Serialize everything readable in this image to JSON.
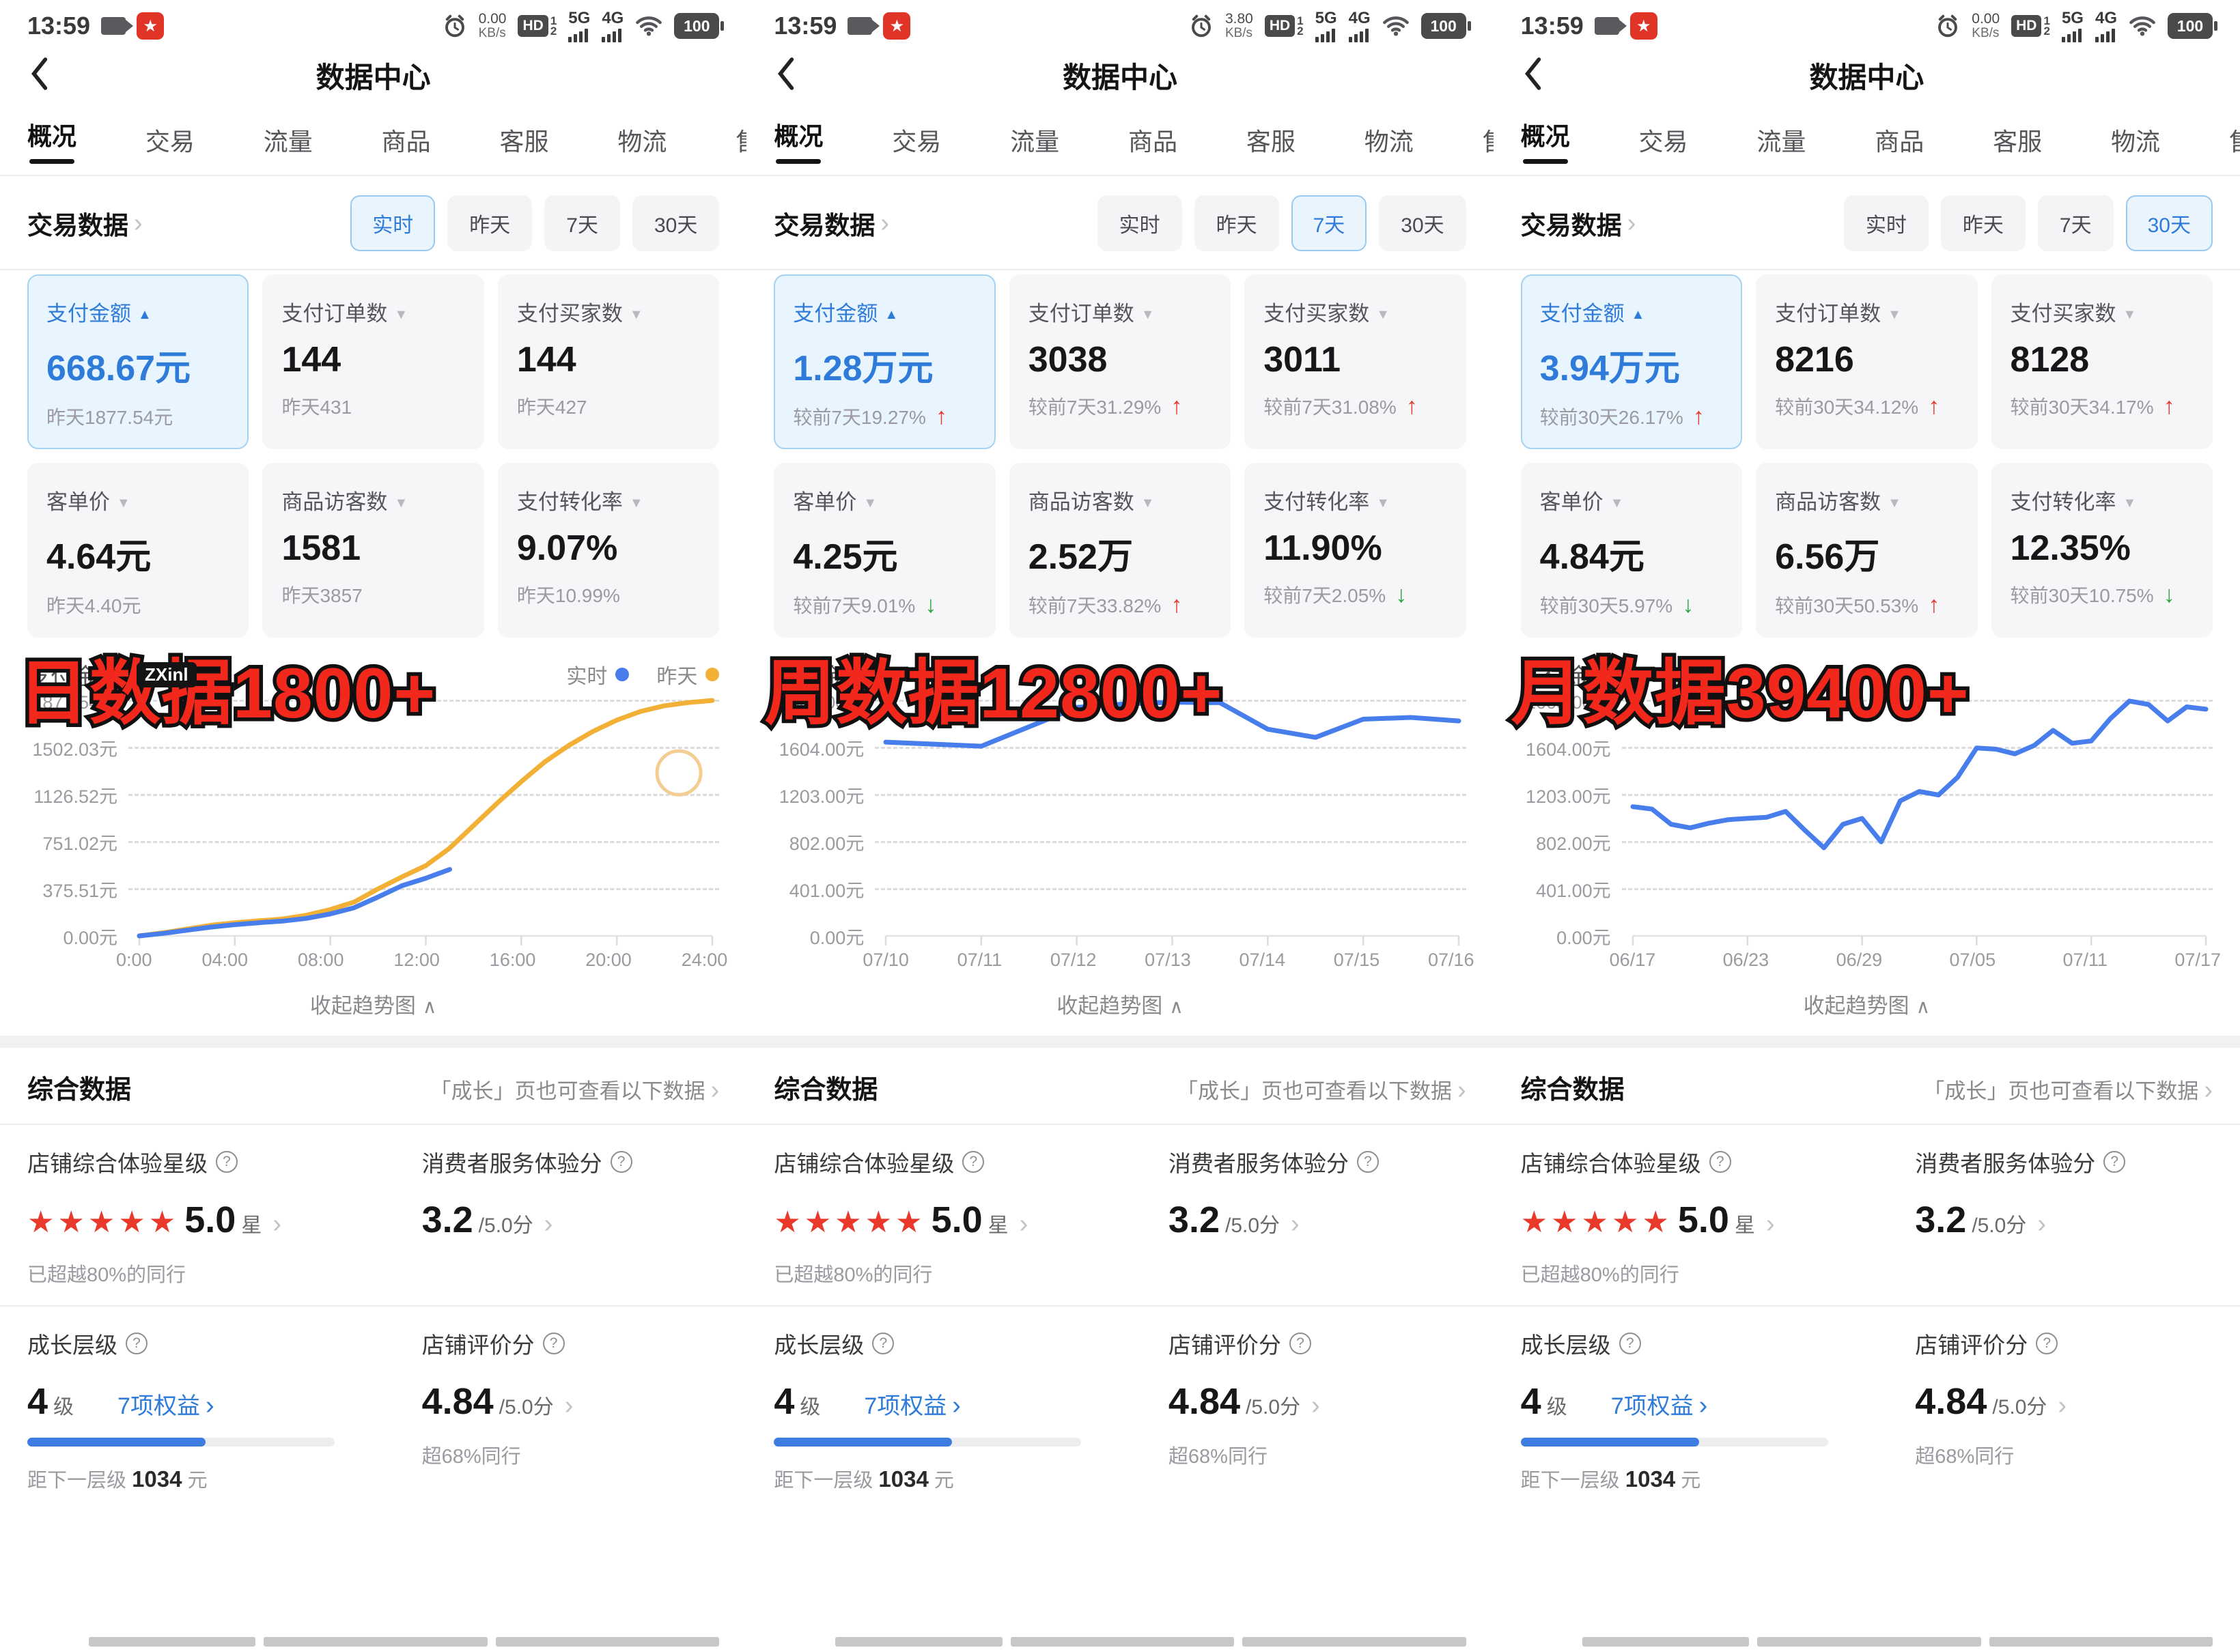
{
  "header_title": "数据中心",
  "tabs": [
    {
      "label": "概况",
      "cls": "active"
    },
    {
      "label": "交易",
      "cls": ""
    },
    {
      "label": "流量",
      "cls": ""
    },
    {
      "label": "商品",
      "cls": ""
    },
    {
      "label": "客服",
      "cls": ""
    },
    {
      "label": "物流",
      "cls": ""
    },
    {
      "label": "售",
      "cls": ""
    }
  ],
  "section_title": "交易数据",
  "collapse_label": "收起趋势图",
  "summary": {
    "heading": "综合数据",
    "link": "「成长」页也可查看以下数据",
    "star_label": "店铺综合体验星级",
    "stars": "★★★★★",
    "star_value": "5.0",
    "star_unit": "星",
    "service_label": "消费者服务体验分",
    "service_value": "3.2",
    "service_suffix": "/5.0分",
    "surpass": "已超越80%的同行",
    "growth_label": "成长层级",
    "growth_value": "4",
    "growth_unit": "级",
    "rights": "7项权益",
    "progress_style": "width:58%",
    "next_level_prefix": "距下一层级",
    "next_level_value": "1034",
    "next_level_unit": "元",
    "rating_label": "店铺评价分",
    "rating_value": "4.84",
    "rating_suffix": "/5.0分",
    "rating_surpass": "超68%同行"
  },
  "panels": [
    {
      "status": {
        "time": "13:59",
        "speed": "0.00",
        "speed_unit": "KB/s",
        "hd": "HD",
        "hd_1": "1",
        "hd_2": "2",
        "net5": "5G",
        "net4": "4G",
        "battery": "100"
      },
      "filters": [
        {
          "label": "实时",
          "cls": "selected"
        },
        {
          "label": "昨天",
          "cls": ""
        },
        {
          "label": "7天",
          "cls": ""
        },
        {
          "label": "30天",
          "cls": ""
        }
      ],
      "cards": [
        {
          "title": "支付金额",
          "value": "668.67元",
          "sub": "昨天1877.54元",
          "cls": "selected",
          "ind": "up",
          "trend": ""
        },
        {
          "title": "支付订单数",
          "value": "144",
          "sub": "昨天431",
          "cls": "",
          "ind": "down",
          "trend": ""
        },
        {
          "title": "支付买家数",
          "value": "144",
          "sub": "昨天427",
          "cls": "",
          "ind": "down",
          "trend": ""
        },
        {
          "title": "客单价",
          "value": "4.64元",
          "sub": "昨天4.40元",
          "cls": "",
          "ind": "down",
          "trend": ""
        },
        {
          "title": "商品访客数",
          "value": "1581",
          "sub": "昨天3857",
          "cls": "",
          "ind": "down",
          "trend": ""
        },
        {
          "title": "支付转化率",
          "value": "9.07%",
          "sub": "昨天10.99%",
          "cls": "",
          "ind": "down",
          "trend": ""
        }
      ],
      "legend": [
        {
          "label": "实时",
          "cls": "dot-blue"
        },
        {
          "label": "昨天",
          "cls": "dot-yellow"
        }
      ],
      "chart_overlay": "日数据1800+",
      "watermark": "ZXinl"
    },
    {
      "status": {
        "time": "13:59",
        "speed": "3.80",
        "speed_unit": "KB/s",
        "hd": "HD",
        "hd_1": "1",
        "hd_2": "2",
        "net5": "5G",
        "net4": "4G",
        "battery": "100"
      },
      "filters": [
        {
          "label": "实时",
          "cls": ""
        },
        {
          "label": "昨天",
          "cls": ""
        },
        {
          "label": "7天",
          "cls": "selected"
        },
        {
          "label": "30天",
          "cls": ""
        }
      ],
      "cards": [
        {
          "title": "支付金额",
          "value": "1.28万元",
          "sub": "较前7天19.27%",
          "cls": "selected",
          "ind": "up",
          "trend": "up"
        },
        {
          "title": "支付订单数",
          "value": "3038",
          "sub": "较前7天31.29%",
          "cls": "",
          "ind": "down",
          "trend": "up"
        },
        {
          "title": "支付买家数",
          "value": "3011",
          "sub": "较前7天31.08%",
          "cls": "",
          "ind": "down",
          "trend": "up"
        },
        {
          "title": "客单价",
          "value": "4.25元",
          "sub": "较前7天9.01%",
          "cls": "",
          "ind": "down",
          "trend": "down"
        },
        {
          "title": "商品访客数",
          "value": "2.52万",
          "sub": "较前7天33.82%",
          "cls": "",
          "ind": "down",
          "trend": "up"
        },
        {
          "title": "支付转化率",
          "value": "11.90%",
          "sub": "较前7天2.05%",
          "cls": "",
          "ind": "down",
          "trend": "down"
        }
      ],
      "legend": [],
      "chart_overlay": "周数据12800+",
      "watermark": ""
    },
    {
      "status": {
        "time": "13:59",
        "speed": "0.00",
        "speed_unit": "KB/s",
        "hd": "HD",
        "hd_1": "1",
        "hd_2": "2",
        "net5": "5G",
        "net4": "4G",
        "battery": "100"
      },
      "filters": [
        {
          "label": "实时",
          "cls": ""
        },
        {
          "label": "昨天",
          "cls": ""
        },
        {
          "label": "7天",
          "cls": ""
        },
        {
          "label": "30天",
          "cls": "selected"
        }
      ],
      "cards": [
        {
          "title": "支付金额",
          "value": "3.94万元",
          "sub": "较前30天26.17%",
          "cls": "selected",
          "ind": "up",
          "trend": "up"
        },
        {
          "title": "支付订单数",
          "value": "8216",
          "sub": "较前30天34.12%",
          "cls": "",
          "ind": "down",
          "trend": "up"
        },
        {
          "title": "支付买家数",
          "value": "8128",
          "sub": "较前30天34.17%",
          "cls": "",
          "ind": "down",
          "trend": "up"
        },
        {
          "title": "客单价",
          "value": "4.84元",
          "sub": "较前30天5.97%",
          "cls": "",
          "ind": "down",
          "trend": "down"
        },
        {
          "title": "商品访客数",
          "value": "6.56万",
          "sub": "较前30天50.53%",
          "cls": "",
          "ind": "down",
          "trend": "up"
        },
        {
          "title": "支付转化率",
          "value": "12.35%",
          "sub": "较前30天10.75%",
          "cls": "",
          "ind": "down",
          "trend": "down"
        }
      ],
      "legend": [],
      "chart_overlay": "月数据39400+",
      "watermark": ""
    }
  ],
  "chart_data": [
    {
      "type": "line",
      "title": "支付金额",
      "unit": "元",
      "overlay_text": "日数据1800+",
      "ymax": 1877.54,
      "xmax": 24,
      "y_ticks": [
        "1877.54元",
        "1502.03元",
        "1126.52元",
        "751.02元",
        "375.51元",
        "0.00元"
      ],
      "x_ticks": [
        "0:00",
        "04:00",
        "08:00",
        "12:00",
        "16:00",
        "20:00",
        "24:00"
      ],
      "series": [
        {
          "name": "昨天",
          "color": "#f2b136",
          "x": [
            0,
            1,
            2,
            3,
            4,
            5,
            6,
            7,
            8,
            9,
            10,
            11,
            12,
            13,
            14,
            15,
            16,
            17,
            18,
            19,
            20,
            21,
            22,
            23,
            24
          ],
          "values": [
            0,
            25,
            55,
            85,
            105,
            120,
            135,
            165,
            210,
            270,
            375,
            470,
            560,
            700,
            880,
            1060,
            1230,
            1390,
            1520,
            1630,
            1720,
            1790,
            1835,
            1860,
            1877
          ]
        },
        {
          "name": "实时",
          "color": "#477eec",
          "x": [
            0,
            1,
            2,
            3,
            4,
            5,
            6,
            7,
            8,
            9,
            10,
            11,
            12,
            13
          ],
          "values": [
            0,
            20,
            45,
            70,
            90,
            105,
            118,
            140,
            175,
            225,
            310,
            400,
            460,
            530
          ]
        }
      ],
      "marker": {
        "x": 22.6,
        "value": 1300,
        "color": "#f3cd92"
      }
    },
    {
      "type": "line",
      "title": "支付金额",
      "unit": "元",
      "overlay_text": "周数据12800+",
      "ymax": 2005,
      "xmax": 6,
      "y_ticks": [
        "2005.00元",
        "1604.00元",
        "1203.00元",
        "802.00元",
        "401.00元",
        "0.00元"
      ],
      "x_ticks": [
        "07/10",
        "07/11",
        "07/12",
        "07/13",
        "07/14",
        "07/15",
        "07/16"
      ],
      "series": [
        {
          "name": "支付金额",
          "color": "#477eec",
          "x": [
            0,
            1,
            2,
            2.5,
            3,
            3.5,
            4,
            4.5,
            5,
            5.5,
            6
          ],
          "values": [
            1650,
            1615,
            1945,
            1975,
            1990,
            1985,
            1760,
            1690,
            1845,
            1860,
            1830
          ]
        }
      ]
    },
    {
      "type": "line",
      "title": "支付金额",
      "unit": "元",
      "overlay_text": "月数据39400+",
      "ymax": 2005,
      "xmax": 30,
      "y_ticks": [
        "2005.00元",
        "1604.00元",
        "1203.00元",
        "802.00元",
        "401.00元",
        "0.00元"
      ],
      "x_ticks": [
        "06/17",
        "06/23",
        "06/29",
        "07/05",
        "07/11",
        "07/17"
      ],
      "series": [
        {
          "name": "支付金额",
          "color": "#477eec",
          "x": [
            0,
            1,
            2,
            3,
            4,
            5,
            6,
            7,
            8,
            9,
            10,
            11,
            12,
            13,
            14,
            15,
            16,
            17,
            18,
            19,
            20,
            21,
            22,
            23,
            24,
            25,
            26,
            27,
            28,
            29,
            30
          ],
          "values": [
            1100,
            1080,
            950,
            920,
            960,
            990,
            1000,
            1010,
            1060,
            900,
            750,
            950,
            1000,
            800,
            1150,
            1230,
            1200,
            1350,
            1600,
            1590,
            1550,
            1620,
            1750,
            1640,
            1660,
            1850,
            2000,
            1970,
            1830,
            1950,
            1930
          ]
        }
      ]
    }
  ]
}
